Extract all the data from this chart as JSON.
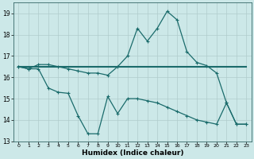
{
  "title": "",
  "xlabel": "Humidex (Indice chaleur)",
  "xlim": [
    -0.5,
    23.5
  ],
  "ylim": [
    13,
    19.5
  ],
  "yticks": [
    13,
    14,
    15,
    16,
    17,
    18,
    19
  ],
  "xticks": [
    0,
    1,
    2,
    3,
    4,
    5,
    6,
    7,
    8,
    9,
    10,
    11,
    12,
    13,
    14,
    15,
    16,
    17,
    18,
    19,
    20,
    21,
    22,
    23
  ],
  "bg_color": "#cce8e8",
  "line_color": "#1a6b6b",
  "grid_color": "#b0cccc",
  "line1_y": [
    16.5,
    16.5,
    16.5,
    16.5,
    16.5,
    16.5,
    16.5,
    16.5,
    16.5,
    16.5,
    16.5,
    16.5,
    16.5,
    16.5,
    16.5,
    16.5,
    16.5,
    16.5,
    16.5,
    16.5,
    16.5,
    16.5,
    16.5,
    16.5
  ],
  "line2_y": [
    16.5,
    16.4,
    16.6,
    16.6,
    16.5,
    16.4,
    16.3,
    16.2,
    16.2,
    16.1,
    16.5,
    17.0,
    18.3,
    17.7,
    18.3,
    19.1,
    18.7,
    17.2,
    16.7,
    16.55,
    16.2,
    14.8,
    13.8,
    13.8
  ],
  "line3_y": [
    16.5,
    16.4,
    16.4,
    15.5,
    15.3,
    15.25,
    14.2,
    13.35,
    13.35,
    15.1,
    14.3,
    15.0,
    15.0,
    14.9,
    14.8,
    14.6,
    14.4,
    14.2,
    14.0,
    13.9,
    13.8,
    14.8,
    13.8,
    13.8
  ]
}
